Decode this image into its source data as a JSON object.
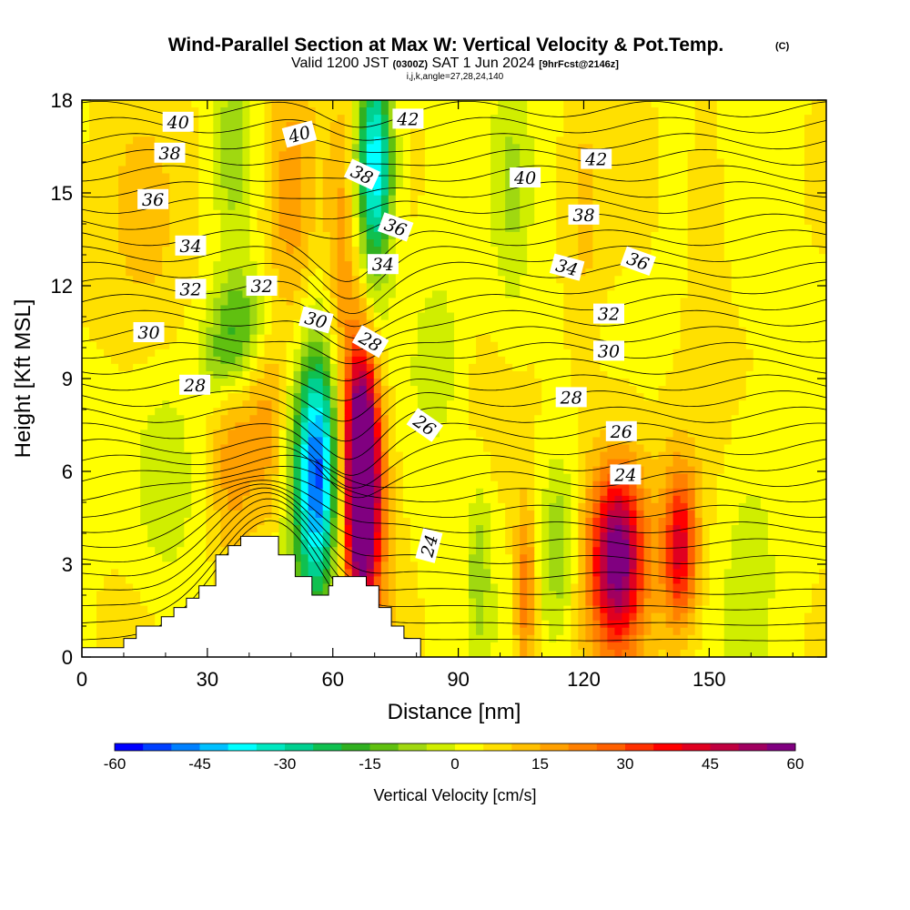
{
  "title": {
    "main": "Wind-Parallel Section at Max W: Vertical Velocity & Pot.Temp.",
    "copyright": "(C)",
    "valid_prefix": "Valid 1200 JST",
    "valid_utc": "(0300Z)",
    "valid_date": "SAT 1 Jun 2024",
    "forecast": "[9hrFcst@2146z]",
    "indices": "i,j,k,angle=27,28,24,140"
  },
  "chart_data": {
    "type": "heatmap",
    "xlabel": "Distance [nm]",
    "ylabel": "Height [Kft MSL]",
    "xlim": [
      0,
      178
    ],
    "ylim": [
      0,
      18
    ],
    "x_ticks": [
      0,
      30,
      60,
      90,
      120,
      150
    ],
    "x_tick_labels": [
      "0",
      "30",
      "60",
      "90",
      "120",
      "150"
    ],
    "y_ticks": [
      0,
      3,
      6,
      9,
      12,
      15,
      18
    ],
    "y_tick_labels": [
      "0",
      "3",
      "6",
      "9",
      "12",
      "15",
      "18"
    ],
    "colorbar": {
      "title": "Vertical Velocity [cm/s]",
      "min": -60,
      "max": 60,
      "step": 5,
      "tick_values": [
        -60,
        -45,
        -30,
        -15,
        0,
        15,
        30,
        45,
        60
      ],
      "tick_labels": [
        "-60",
        "-45",
        "-30",
        "-15",
        "0",
        "15",
        "30",
        "45",
        "60"
      ],
      "colors": [
        "#0000ff",
        "#0040ff",
        "#0080ff",
        "#00c0ff",
        "#00ffff",
        "#00e8c0",
        "#00d090",
        "#10c050",
        "#30b020",
        "#60c010",
        "#a0d810",
        "#d0ee00",
        "#ffff00",
        "#ffe000",
        "#ffc000",
        "#ffa000",
        "#ff8000",
        "#ff6000",
        "#ff3000",
        "#ff0000",
        "#e00020",
        "#c00040",
        "#a00060",
        "#800080"
      ]
    },
    "terrain": [
      [
        0,
        0.3
      ],
      [
        10,
        0.3
      ],
      [
        10,
        0.6
      ],
      [
        13,
        0.6
      ],
      [
        13,
        1.0
      ],
      [
        19,
        1.0
      ],
      [
        19,
        1.3
      ],
      [
        22,
        1.3
      ],
      [
        22,
        1.6
      ],
      [
        25,
        1.6
      ],
      [
        25,
        1.9
      ],
      [
        28,
        1.9
      ],
      [
        28,
        2.3
      ],
      [
        32,
        2.3
      ],
      [
        32,
        3.3
      ],
      [
        35,
        3.3
      ],
      [
        35,
        3.6
      ],
      [
        38,
        3.6
      ],
      [
        38,
        3.9
      ],
      [
        47,
        3.9
      ],
      [
        47,
        3.3
      ],
      [
        51,
        3.3
      ],
      [
        51,
        2.6
      ],
      [
        55,
        2.6
      ],
      [
        55,
        2.0
      ],
      [
        59,
        2.0
      ],
      [
        59,
        2.3
      ],
      [
        60,
        2.3
      ],
      [
        60,
        2.6
      ],
      [
        68,
        2.6
      ],
      [
        68,
        2.3
      ],
      [
        71,
        2.3
      ],
      [
        71,
        1.6
      ],
      [
        74,
        1.6
      ],
      [
        74,
        1.0
      ],
      [
        77,
        1.0
      ],
      [
        77,
        0.6
      ],
      [
        81,
        0.6
      ],
      [
        81,
        0
      ]
    ],
    "w_cells": [
      {
        "x": 56,
        "y": 6.0,
        "sx": 3.5,
        "sy": 2.6,
        "w": -42
      },
      {
        "x": 56.5,
        "y": 5.5,
        "sx": 5.5,
        "sy": 3.8,
        "w": -16
      },
      {
        "x": 67,
        "y": 6.0,
        "sx": 2.6,
        "sy": 2.6,
        "w": 70
      },
      {
        "x": 67,
        "y": 5.5,
        "sx": 4.5,
        "sy": 3.8,
        "w": 28
      },
      {
        "x": 70,
        "y": 16.0,
        "sx": 3.0,
        "sy": 2.0,
        "w": -35
      },
      {
        "x": 70,
        "y": 14.0,
        "sx": 3.0,
        "sy": 4.0,
        "w": -15
      },
      {
        "x": 50,
        "y": 15.0,
        "sx": 4.5,
        "sy": 3.5,
        "w": 16
      },
      {
        "x": 62,
        "y": 13.0,
        "sx": 2.5,
        "sy": 3.5,
        "w": 12
      },
      {
        "x": 38,
        "y": 11.0,
        "sx": 5.0,
        "sy": 1.2,
        "w": -18
      },
      {
        "x": 34,
        "y": 9.5,
        "sx": 4.0,
        "sy": 1.0,
        "w": -14
      },
      {
        "x": 36,
        "y": 16.5,
        "sx": 3.0,
        "sy": 2.0,
        "w": -12
      },
      {
        "x": 36,
        "y": 6.0,
        "sx": 3.5,
        "sy": 2.5,
        "w": 12
      },
      {
        "x": 44,
        "y": 7.0,
        "sx": 3.0,
        "sy": 2.5,
        "w": 10
      },
      {
        "x": 20,
        "y": 5.5,
        "sx": 5.0,
        "sy": 2.5,
        "w": -8
      },
      {
        "x": 128,
        "y": 3.2,
        "sx": 4.0,
        "sy": 1.8,
        "w": 40
      },
      {
        "x": 128,
        "y": 3.5,
        "sx": 6.0,
        "sy": 3.0,
        "w": 18
      },
      {
        "x": 143,
        "y": 3.5,
        "sx": 2.5,
        "sy": 1.5,
        "w": 28
      },
      {
        "x": 143,
        "y": 3.8,
        "sx": 4.0,
        "sy": 2.5,
        "w": 12
      },
      {
        "x": 106,
        "y": 2.0,
        "sx": 1.8,
        "sy": 2.0,
        "w": 22
      },
      {
        "x": 114,
        "y": 3.5,
        "sx": 3.0,
        "sy": 2.0,
        "w": -14
      },
      {
        "x": 95,
        "y": 3.0,
        "sx": 2.0,
        "sy": 2.0,
        "w": -12
      },
      {
        "x": 103,
        "y": 15.0,
        "sx": 3.0,
        "sy": 3.0,
        "w": -8
      },
      {
        "x": 120,
        "y": 13.5,
        "sx": 3.0,
        "sy": 3.5,
        "w": 6
      },
      {
        "x": 150,
        "y": 14.5,
        "sx": 3.5,
        "sy": 3.0,
        "w": 6
      },
      {
        "x": 15,
        "y": 12.5,
        "sx": 8.0,
        "sy": 4.0,
        "w": 6
      },
      {
        "x": 85,
        "y": 9.5,
        "sx": 4.0,
        "sy": 2.0,
        "w": -8
      },
      {
        "x": 160,
        "y": 4.0,
        "sx": 5.0,
        "sy": 3.0,
        "w": -6
      }
    ],
    "theta_labels": [
      {
        "text": "40",
        "x": 23,
        "y": 17.3,
        "rot": 0
      },
      {
        "text": "38",
        "x": 21,
        "y": 16.3,
        "rot": 0
      },
      {
        "text": "36",
        "x": 17,
        "y": 14.8,
        "rot": 0
      },
      {
        "text": "34",
        "x": 26,
        "y": 13.3,
        "rot": 0
      },
      {
        "text": "32",
        "x": 26,
        "y": 11.9,
        "rot": 0
      },
      {
        "text": "30",
        "x": 16,
        "y": 10.5,
        "rot": 0
      },
      {
        "text": "28",
        "x": 27,
        "y": 8.8,
        "rot": 0
      },
      {
        "text": "32",
        "x": 43,
        "y": 12.0,
        "rot": 0
      },
      {
        "text": "40",
        "x": 52,
        "y": 16.9,
        "rot": -15
      },
      {
        "text": "30",
        "x": 56,
        "y": 10.9,
        "rot": 15
      },
      {
        "text": "42",
        "x": 78,
        "y": 17.4,
        "rot": 0
      },
      {
        "text": "38",
        "x": 67,
        "y": 15.6,
        "rot": 25
      },
      {
        "text": "36",
        "x": 75,
        "y": 13.9,
        "rot": 20
      },
      {
        "text": "34",
        "x": 72,
        "y": 12.7,
        "rot": 0
      },
      {
        "text": "28",
        "x": 69,
        "y": 10.2,
        "rot": 30
      },
      {
        "text": "26",
        "x": 82,
        "y": 7.5,
        "rot": 35
      },
      {
        "text": "24",
        "x": 83,
        "y": 3.6,
        "rot": -75
      },
      {
        "text": "40",
        "x": 106,
        "y": 15.5,
        "rot": 0
      },
      {
        "text": "42",
        "x": 123,
        "y": 16.1,
        "rot": 0
      },
      {
        "text": "38",
        "x": 120,
        "y": 14.3,
        "rot": 0
      },
      {
        "text": "36",
        "x": 133,
        "y": 12.8,
        "rot": 20
      },
      {
        "text": "34",
        "x": 116,
        "y": 12.6,
        "rot": 15
      },
      {
        "text": "32",
        "x": 126,
        "y": 11.1,
        "rot": 0
      },
      {
        "text": "30",
        "x": 126,
        "y": 9.9,
        "rot": 0
      },
      {
        "text": "28",
        "x": 117,
        "y": 8.4,
        "rot": 0
      },
      {
        "text": "26",
        "x": 129,
        "y": 7.3,
        "rot": 0
      },
      {
        "text": "24",
        "x": 130,
        "y": 5.9,
        "rot": 0
      }
    ]
  }
}
